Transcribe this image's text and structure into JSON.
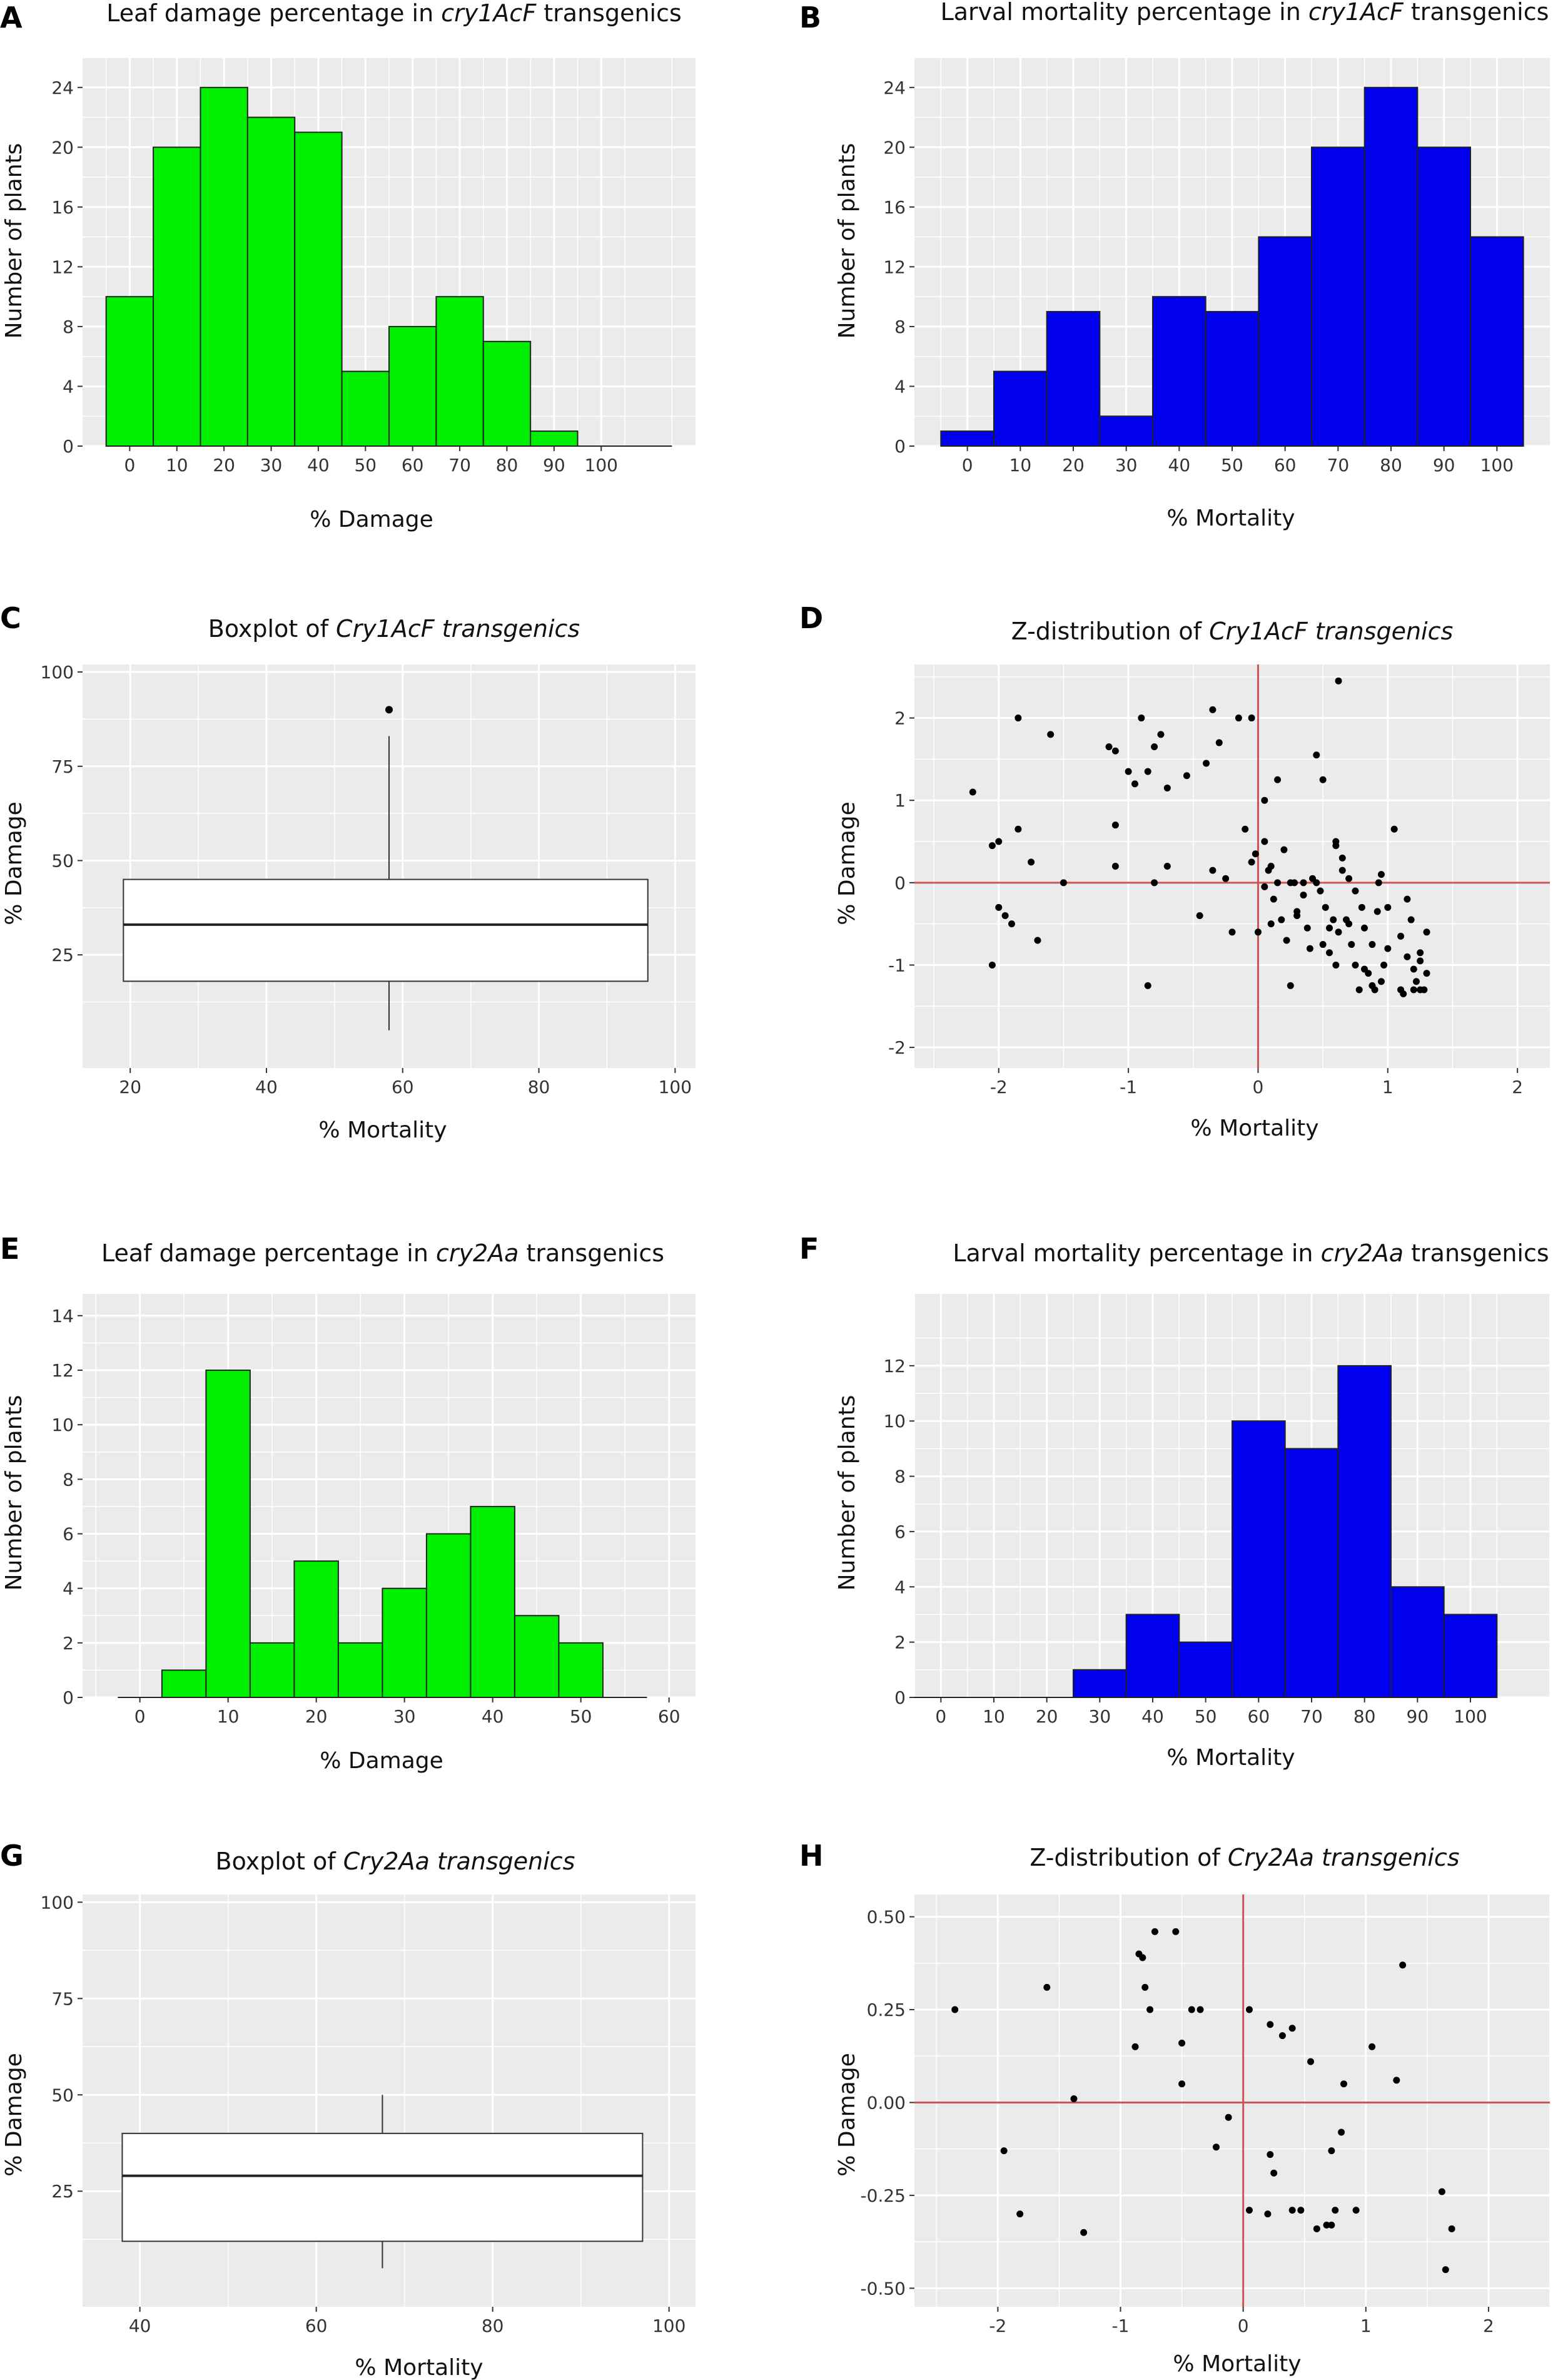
{
  "panels": [
    {
      "id": "A",
      "label": "A",
      "title_parts": [
        {
          "text": "Leaf damage percentage in ",
          "italic": false
        },
        {
          "text": "cry1AcF",
          "italic": true
        },
        {
          "text": " transgenics",
          "italic": false
        }
      ],
      "xlabel": "% Damage",
      "ylabel": "Number of plants"
    },
    {
      "id": "B",
      "label": "B",
      "title_parts": [
        {
          "text": "Larval mortality percentage in ",
          "italic": false
        },
        {
          "text": "cry1AcF",
          "italic": true
        },
        {
          "text": " transgenics",
          "italic": false
        }
      ],
      "xlabel": "% Mortality",
      "ylabel": "Number of plants"
    },
    {
      "id": "C",
      "label": "C",
      "title_parts": [
        {
          "text": "Boxplot of ",
          "italic": false
        },
        {
          "text": "Cry1AcF transgenics",
          "italic": true
        }
      ],
      "xlabel": "% Mortality",
      "ylabel": "% Damage"
    },
    {
      "id": "D",
      "label": "D",
      "title_parts": [
        {
          "text": "Z-distribution of ",
          "italic": false
        },
        {
          "text": "Cry1AcF transgenics",
          "italic": true
        }
      ],
      "xlabel": "% Mortality",
      "ylabel": "% Damage"
    },
    {
      "id": "E",
      "label": "E",
      "title_parts": [
        {
          "text": "Leaf damage percentage in ",
          "italic": false
        },
        {
          "text": "cry2Aa",
          "italic": true
        },
        {
          "text": " transgenics",
          "italic": false
        }
      ],
      "xlabel": "% Damage",
      "ylabel": "Number of plants"
    },
    {
      "id": "F",
      "label": "F",
      "title_parts": [
        {
          "text": "Larval mortality percentage in ",
          "italic": false
        },
        {
          "text": "cry2Aa",
          "italic": true
        },
        {
          "text": " transgenics",
          "italic": false
        }
      ],
      "xlabel": "% Mortality",
      "ylabel": "Number of plants"
    },
    {
      "id": "G",
      "label": "G",
      "title_parts": [
        {
          "text": "Boxplot of ",
          "italic": false
        },
        {
          "text": "Cry2Aa transgenics",
          "italic": true
        }
      ],
      "xlabel": "% Mortality",
      "ylabel": "% Damage"
    },
    {
      "id": "H",
      "label": "H",
      "title_parts": [
        {
          "text": "Z-distribution of ",
          "italic": false
        },
        {
          "text": "Cry2Aa transgenics",
          "italic": true
        }
      ],
      "xlabel": "% Mortality",
      "ylabel": "% Damage"
    }
  ],
  "colors": {
    "green_bar": "#00ee00",
    "blue_bar": "#0000ee",
    "panel_bg": "#ebebeb",
    "grid": "#ffffff",
    "zero_line": "#cc5555",
    "point": "#000000"
  },
  "chart_data": [
    {
      "panel": "A",
      "type": "bar",
      "title": "Leaf damage percentage in cry1AcF transgenics",
      "xlabel": "% Damage",
      "ylabel": "Number of plants",
      "bin_width": 10,
      "bin_centers": [
        0,
        10,
        20,
        30,
        40,
        50,
        60,
        70,
        80,
        90,
        100,
        110
      ],
      "values": [
        10,
        20,
        24,
        22,
        21,
        5,
        8,
        10,
        7,
        1,
        0,
        0
      ],
      "x_ticks": [
        0,
        10,
        20,
        30,
        40,
        50,
        60,
        70,
        80,
        90,
        100
      ],
      "y_ticks": [
        0,
        4,
        8,
        12,
        16,
        20,
        24
      ],
      "xlim": [
        -10,
        120
      ],
      "ylim": [
        0,
        26
      ],
      "color": "#00ee00"
    },
    {
      "panel": "B",
      "type": "bar",
      "title": "Larval mortality percentage in cry1AcF transgenics",
      "xlabel": "% Mortality",
      "ylabel": "Number of plants",
      "bin_width": 10,
      "bin_centers": [
        0,
        10,
        20,
        30,
        40,
        50,
        60,
        70,
        80,
        90,
        100
      ],
      "values": [
        1,
        5,
        9,
        2,
        10,
        9,
        14,
        20,
        24,
        20,
        14
      ],
      "x_ticks": [
        0,
        10,
        20,
        30,
        40,
        50,
        60,
        70,
        80,
        90,
        100
      ],
      "y_ticks": [
        0,
        4,
        8,
        12,
        16,
        20,
        24
      ],
      "xlim": [
        -10,
        110
      ],
      "ylim": [
        0,
        26
      ],
      "color": "#0000ee"
    },
    {
      "panel": "C",
      "type": "box",
      "title": "Boxplot of Cry1AcF transgenics",
      "xlabel": "% Mortality",
      "ylabel": "% Damage",
      "x_range": [
        19,
        96
      ],
      "whisker_x": 58,
      "q1": 18,
      "median": 33,
      "q3": 45,
      "whisker_low": 5,
      "whisker_high": 83,
      "outliers": [
        90
      ],
      "x_ticks": [
        20,
        40,
        60,
        80,
        100
      ],
      "y_ticks": [
        25,
        50,
        75,
        100
      ],
      "xlim": [
        13,
        103
      ],
      "ylim": [
        -5,
        102
      ]
    },
    {
      "panel": "D",
      "type": "scatter",
      "title": "Z-distribution of Cry1AcF transgenics",
      "xlabel": "% Mortality",
      "ylabel": "% Damage",
      "points": [
        [
          -2.2,
          1.1
        ],
        [
          -2.05,
          0.45
        ],
        [
          -2.0,
          0.5
        ],
        [
          -2.0,
          -0.3
        ],
        [
          -2.05,
          -1.0
        ],
        [
          -1.95,
          -0.4
        ],
        [
          -1.9,
          -0.5
        ],
        [
          -1.85,
          0.65
        ],
        [
          -1.85,
          2.0
        ],
        [
          -1.75,
          0.25
        ],
        [
          -1.7,
          -0.7
        ],
        [
          -1.6,
          1.8
        ],
        [
          -1.5,
          0.0
        ],
        [
          -1.15,
          1.65
        ],
        [
          -1.1,
          1.6
        ],
        [
          -1.1,
          0.7
        ],
        [
          -1.1,
          0.2
        ],
        [
          -1.0,
          1.35
        ],
        [
          -0.95,
          1.2
        ],
        [
          -0.9,
          2.0
        ],
        [
          -0.85,
          1.35
        ],
        [
          -0.85,
          -1.25
        ],
        [
          -0.8,
          1.65
        ],
        [
          -0.8,
          0.0
        ],
        [
          -0.75,
          1.8
        ],
        [
          -0.7,
          1.15
        ],
        [
          -0.7,
          0.2
        ],
        [
          -0.55,
          1.3
        ],
        [
          -0.45,
          -0.4
        ],
        [
          -0.4,
          1.45
        ],
        [
          -0.35,
          2.1
        ],
        [
          -0.3,
          1.7
        ],
        [
          -0.35,
          0.15
        ],
        [
          -0.25,
          0.05
        ],
        [
          -0.2,
          -0.6
        ],
        [
          -0.15,
          2.0
        ],
        [
          -0.1,
          0.65
        ],
        [
          -0.05,
          0.25
        ],
        [
          0.0,
          -0.6
        ],
        [
          -0.05,
          2.0
        ],
        [
          0.05,
          1.0
        ],
        [
          0.05,
          0.5
        ],
        [
          0.1,
          0.2
        ],
        [
          0.1,
          -0.5
        ],
        [
          0.15,
          1.25
        ],
        [
          0.2,
          0.4
        ],
        [
          0.25,
          -1.25
        ],
        [
          0.3,
          -0.4
        ],
        [
          0.35,
          0.0
        ],
        [
          0.4,
          -0.8
        ],
        [
          0.45,
          1.55
        ],
        [
          0.45,
          0.0
        ],
        [
          0.5,
          1.25
        ],
        [
          0.55,
          -0.85
        ],
        [
          0.6,
          0.5
        ],
        [
          0.62,
          2.45
        ],
        [
          0.65,
          0.3
        ],
        [
          0.7,
          -0.5
        ],
        [
          0.75,
          -1.0
        ],
        [
          0.8,
          -0.3
        ],
        [
          0.85,
          -1.1
        ],
        [
          0.9,
          -1.3
        ],
        [
          0.95,
          0.1
        ],
        [
          1.0,
          -0.8
        ],
        [
          1.05,
          0.65
        ],
        [
          1.1,
          -1.3
        ],
        [
          1.15,
          -0.2
        ],
        [
          1.2,
          -1.05
        ],
        [
          1.25,
          -1.3
        ],
        [
          1.3,
          -0.6
        ],
        [
          1.28,
          -1.3
        ],
        [
          1.22,
          -1.2
        ],
        [
          1.18,
          -0.45
        ],
        [
          1.12,
          -1.35
        ],
        [
          0.97,
          -1.0
        ],
        [
          0.92,
          -0.35
        ],
        [
          0.88,
          -1.25
        ],
        [
          0.82,
          -1.05
        ],
        [
          0.78,
          -1.3
        ],
        [
          0.72,
          -0.75
        ],
        [
          0.68,
          -0.45
        ],
        [
          0.6,
          -1.0
        ],
        [
          0.55,
          -0.55
        ],
        [
          0.52,
          -0.3
        ],
        [
          0.48,
          -0.1
        ],
        [
          0.42,
          0.05
        ],
        [
          0.38,
          -0.55
        ],
        [
          0.3,
          -0.35
        ],
        [
          0.22,
          -0.7
        ],
        [
          0.18,
          -0.45
        ],
        [
          0.12,
          -0.2
        ],
        [
          0.08,
          0.15
        ],
        [
          0.05,
          -0.05
        ],
        [
          -0.02,
          0.35
        ],
        [
          0.15,
          0.0
        ],
        [
          0.25,
          0.0
        ],
        [
          0.6,
          0.45
        ],
        [
          0.65,
          0.15
        ],
        [
          0.7,
          0.05
        ],
        [
          0.75,
          -0.1
        ],
        [
          0.82,
          -0.55
        ],
        [
          0.88,
          -0.75
        ],
        [
          0.93,
          0.0
        ],
        [
          1.0,
          -0.3
        ],
        [
          1.1,
          -0.65
        ],
        [
          1.15,
          -0.9
        ],
        [
          1.25,
          -0.85
        ],
        [
          1.3,
          -1.1
        ],
        [
          1.25,
          -0.95
        ],
        [
          1.2,
          -1.3
        ],
        [
          0.58,
          -0.45
        ],
        [
          0.62,
          -0.6
        ],
        [
          0.5,
          -0.75
        ],
        [
          0.35,
          -0.15
        ],
        [
          0.28,
          0.0
        ],
        [
          0.95,
          -1.2
        ]
      ],
      "x_ticks": [
        -2,
        -1,
        0,
        1,
        2
      ],
      "y_ticks": [
        -2,
        -1,
        0,
        1,
        2
      ],
      "xlim": [
        -2.65,
        2.25
      ],
      "ylim": [
        -2.25,
        2.65
      ],
      "ref_lines": {
        "x": 0,
        "y": 0
      }
    },
    {
      "panel": "E",
      "type": "bar",
      "title": "Leaf damage percentage in cry2Aa transgenics",
      "xlabel": "% Damage",
      "ylabel": "Number of plants",
      "bin_width": 5,
      "bin_centers": [
        0,
        5,
        10,
        15,
        20,
        25,
        30,
        35,
        40,
        45,
        50,
        55
      ],
      "values": [
        0,
        1,
        12,
        2,
        5,
        2,
        4,
        6,
        7,
        3,
        2,
        0
      ],
      "x_ticks": [
        0,
        10,
        20,
        30,
        40,
        50,
        60
      ],
      "y_ticks": [
        0,
        2,
        4,
        6,
        8,
        10,
        12,
        14
      ],
      "xlim": [
        -6.5,
        63
      ],
      "ylim": [
        0,
        14.8
      ],
      "color": "#00ee00"
    },
    {
      "panel": "F",
      "type": "bar",
      "title": "Larval mortality percentage in cry2Aa transgenics",
      "xlabel": "% Mortality",
      "ylabel": "Number of plants",
      "bin_width": 10,
      "bin_centers": [
        0,
        10,
        20,
        30,
        40,
        50,
        60,
        70,
        80,
        90,
        100
      ],
      "values": [
        0,
        0,
        0,
        1,
        3,
        2,
        10,
        9,
        12,
        4,
        3
      ],
      "x_ticks": [
        0,
        10,
        20,
        30,
        40,
        50,
        60,
        70,
        80,
        90,
        100
      ],
      "y_ticks": [
        0,
        2,
        4,
        6,
        8,
        10,
        12
      ],
      "xlim": [
        -5,
        115
      ],
      "ylim": [
        0,
        14.6
      ],
      "color": "#0000ee"
    },
    {
      "panel": "G",
      "type": "box",
      "title": "Boxplot of Cry2Aa transgenics",
      "xlabel": "% Mortality",
      "ylabel": "% Damage",
      "x_range": [
        38,
        97
      ],
      "whisker_x": 67.5,
      "q1": 12,
      "median": 29,
      "q3": 40,
      "whisker_low": 5,
      "whisker_high": 50,
      "outliers": [],
      "x_ticks": [
        40,
        60,
        80,
        100
      ],
      "y_ticks": [
        25,
        50,
        75,
        100
      ],
      "xlim": [
        33.5,
        103
      ],
      "ylim": [
        -5,
        102
      ]
    },
    {
      "panel": "H",
      "type": "scatter",
      "title": "Z-distribution of Cry2Aa transgenics",
      "xlabel": "% Mortality",
      "ylabel": "% Damage",
      "points": [
        [
          -2.35,
          0.25
        ],
        [
          -1.95,
          -0.13
        ],
        [
          -1.82,
          -0.3
        ],
        [
          -1.6,
          0.31
        ],
        [
          -1.38,
          0.01
        ],
        [
          -1.3,
          -0.35
        ],
        [
          -0.88,
          0.15
        ],
        [
          -0.85,
          0.4
        ],
        [
          -0.82,
          0.39
        ],
        [
          -0.8,
          0.31
        ],
        [
          -0.76,
          0.25
        ],
        [
          -0.72,
          0.46
        ],
        [
          -0.55,
          0.46
        ],
        [
          -0.5,
          0.16
        ],
        [
          -0.5,
          0.05
        ],
        [
          -0.42,
          0.25
        ],
        [
          -0.35,
          0.25
        ],
        [
          -0.22,
          -0.12
        ],
        [
          -0.12,
          -0.04
        ],
        [
          0.05,
          0.25
        ],
        [
          0.05,
          -0.29
        ],
        [
          0.2,
          -0.3
        ],
        [
          0.22,
          0.21
        ],
        [
          0.22,
          -0.14
        ],
        [
          0.25,
          -0.19
        ],
        [
          0.32,
          0.18
        ],
        [
          0.4,
          0.2
        ],
        [
          0.4,
          -0.29
        ],
        [
          0.47,
          -0.29
        ],
        [
          0.55,
          0.11
        ],
        [
          0.6,
          -0.34
        ],
        [
          0.68,
          -0.33
        ],
        [
          0.72,
          -0.33
        ],
        [
          0.72,
          -0.13
        ],
        [
          0.75,
          -0.29
        ],
        [
          0.8,
          -0.08
        ],
        [
          0.82,
          0.05
        ],
        [
          0.92,
          -0.29
        ],
        [
          1.05,
          0.15
        ],
        [
          1.25,
          0.06
        ],
        [
          1.3,
          0.37
        ],
        [
          1.62,
          -0.24
        ],
        [
          1.65,
          -0.45
        ],
        [
          1.7,
          -0.34
        ]
      ],
      "x_ticks": [
        -2,
        -1,
        0,
        1,
        2
      ],
      "y_ticks": [
        -0.5,
        -0.25,
        0.0,
        0.25,
        0.5
      ],
      "y_tick_labels": [
        "-0.50",
        "-0.25",
        "0.00",
        "0.25",
        "0.50"
      ],
      "xlim": [
        -2.68,
        2.5
      ],
      "ylim": [
        -0.55,
        0.56
      ],
      "ref_lines": {
        "x": 0,
        "y": 0
      }
    }
  ]
}
